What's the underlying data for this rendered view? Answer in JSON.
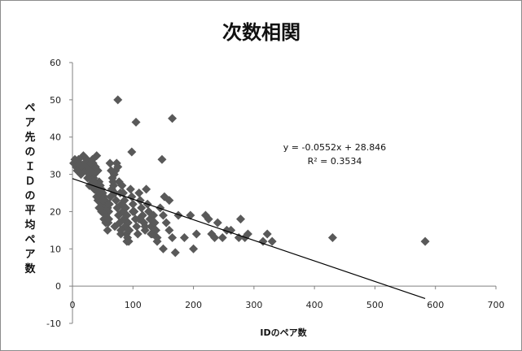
{
  "chart_data": {
    "type": "scatter",
    "title": "次数相関",
    "xlabel": "IDのペア数",
    "ylabel": "ペア先のＩＤの平均ペア数",
    "xlim": [
      0,
      700
    ],
    "ylim": [
      -10,
      60
    ],
    "x_ticks": [
      "0",
      "100",
      "200",
      "300",
      "400",
      "500",
      "600",
      "700"
    ],
    "y_ticks": [
      "-10",
      "0",
      "10",
      "20",
      "30",
      "40",
      "50",
      "60"
    ],
    "grid": false,
    "legend": "none",
    "marker_color": "#595959",
    "trendline": {
      "slope": -0.0552,
      "intercept": 28.846,
      "x_range": [
        0,
        583
      ],
      "color": "#000000",
      "equation": "y = -0.0552x + 28.846",
      "r2_label": "R² = 0.3534"
    },
    "points": [
      [
        2,
        33
      ],
      [
        4,
        34
      ],
      [
        6,
        32
      ],
      [
        8,
        31
      ],
      [
        10,
        34
      ],
      [
        12,
        33
      ],
      [
        14,
        30
      ],
      [
        16,
        32
      ],
      [
        18,
        35
      ],
      [
        20,
        33
      ],
      [
        22,
        31
      ],
      [
        24,
        34
      ],
      [
        26,
        32
      ],
      [
        28,
        30
      ],
      [
        30,
        29
      ],
      [
        32,
        31
      ],
      [
        34,
        33
      ],
      [
        36,
        30
      ],
      [
        38,
        32
      ],
      [
        40,
        35
      ],
      [
        42,
        31
      ],
      [
        44,
        28
      ],
      [
        46,
        27
      ],
      [
        48,
        26
      ],
      [
        50,
        25
      ],
      [
        52,
        24
      ],
      [
        54,
        23
      ],
      [
        56,
        22
      ],
      [
        58,
        21
      ],
      [
        60,
        20
      ],
      [
        35,
        29
      ],
      [
        37,
        28
      ],
      [
        39,
        27
      ],
      [
        41,
        26
      ],
      [
        43,
        25
      ],
      [
        45,
        24
      ],
      [
        47,
        23
      ],
      [
        49,
        22
      ],
      [
        51,
        21
      ],
      [
        53,
        20
      ],
      [
        55,
        19
      ],
      [
        57,
        18
      ],
      [
        59,
        17
      ],
      [
        61,
        22
      ],
      [
        63,
        24
      ],
      [
        65,
        26
      ],
      [
        67,
        28
      ],
      [
        69,
        30
      ],
      [
        71,
        31
      ],
      [
        73,
        33
      ],
      [
        75,
        32
      ],
      [
        77,
        28
      ],
      [
        79,
        25
      ],
      [
        81,
        22
      ],
      [
        83,
        20
      ],
      [
        85,
        18
      ],
      [
        87,
        16
      ],
      [
        89,
        14
      ],
      [
        91,
        13
      ],
      [
        93,
        12
      ],
      [
        62,
        33
      ],
      [
        64,
        31
      ],
      [
        66,
        29
      ],
      [
        68,
        27
      ],
      [
        70,
        25
      ],
      [
        72,
        23
      ],
      [
        74,
        21
      ],
      [
        76,
        19
      ],
      [
        78,
        17
      ],
      [
        80,
        15
      ],
      [
        82,
        27
      ],
      [
        84,
        25
      ],
      [
        86,
        23
      ],
      [
        88,
        21
      ],
      [
        90,
        19
      ],
      [
        92,
        17
      ],
      [
        94,
        15
      ],
      [
        96,
        26
      ],
      [
        98,
        24
      ],
      [
        100,
        22
      ],
      [
        102,
        20
      ],
      [
        104,
        18
      ],
      [
        106,
        16
      ],
      [
        108,
        14
      ],
      [
        110,
        25
      ],
      [
        112,
        23
      ],
      [
        114,
        21
      ],
      [
        116,
        19
      ],
      [
        118,
        17
      ],
      [
        120,
        15
      ],
      [
        122,
        26
      ],
      [
        124,
        22
      ],
      [
        126,
        20
      ],
      [
        128,
        18
      ],
      [
        130,
        16
      ],
      [
        132,
        14
      ],
      [
        134,
        19
      ],
      [
        136,
        17
      ],
      [
        138,
        15
      ],
      [
        140,
        13
      ],
      [
        145,
        21
      ],
      [
        150,
        19
      ],
      [
        155,
        17
      ],
      [
        160,
        15
      ],
      [
        165,
        13
      ],
      [
        55,
        17
      ],
      [
        58,
        15
      ],
      [
        52,
        18
      ],
      [
        48,
        20
      ],
      [
        44,
        21
      ],
      [
        42,
        23
      ],
      [
        40,
        24
      ],
      [
        25,
        29
      ],
      [
        28,
        27
      ],
      [
        30,
        33
      ],
      [
        33,
        34
      ],
      [
        75,
        50
      ],
      [
        98,
        36
      ],
      [
        105,
        44
      ],
      [
        148,
        34
      ],
      [
        152,
        24
      ],
      [
        165,
        45
      ],
      [
        160,
        23
      ],
      [
        170,
        9
      ],
      [
        175,
        19
      ],
      [
        185,
        13
      ],
      [
        195,
        19
      ],
      [
        200,
        10
      ],
      [
        205,
        14
      ],
      [
        220,
        19
      ],
      [
        225,
        18
      ],
      [
        230,
        14
      ],
      [
        235,
        13
      ],
      [
        240,
        17
      ],
      [
        248,
        13
      ],
      [
        255,
        15
      ],
      [
        262,
        15
      ],
      [
        275,
        13
      ],
      [
        278,
        18
      ],
      [
        285,
        13
      ],
      [
        290,
        14
      ],
      [
        315,
        12
      ],
      [
        322,
        14
      ],
      [
        330,
        12
      ],
      [
        430,
        13
      ],
      [
        583,
        12
      ],
      [
        150,
        10
      ],
      [
        140,
        12
      ],
      [
        130,
        14
      ],
      [
        120,
        16
      ],
      [
        110,
        18
      ],
      [
        100,
        20
      ],
      [
        90,
        12
      ],
      [
        80,
        14
      ],
      [
        70,
        16
      ],
      [
        60,
        18
      ],
      [
        50,
        23
      ],
      [
        45,
        25
      ],
      [
        38,
        27
      ],
      [
        36,
        26
      ],
      [
        34,
        28
      ]
    ]
  }
}
